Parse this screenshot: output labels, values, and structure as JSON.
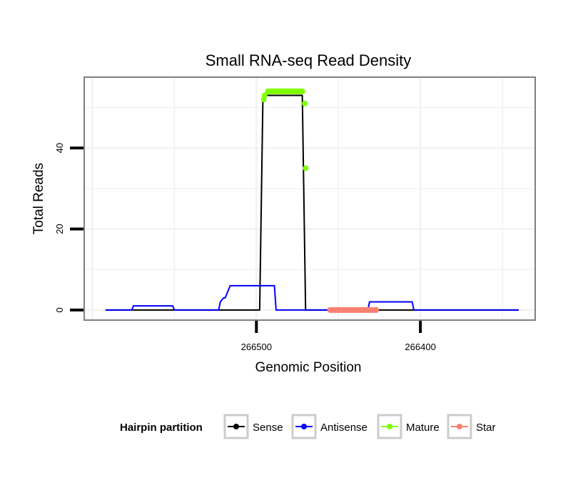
{
  "chart_data": {
    "type": "line",
    "title": "Small RNA-seq Read Density",
    "xlabel": "Genomic Position",
    "ylabel": "Total Reads",
    "x_reversed": true,
    "xlim": [
      266605,
      266330
    ],
    "ylim": [
      -2.5,
      57.5
    ],
    "x_ticks": [
      {
        "value": 266500,
        "label": "266500"
      },
      {
        "value": 266400,
        "label": "266400"
      }
    ],
    "y_ticks": [
      {
        "value": 0,
        "label": "0"
      },
      {
        "value": 20,
        "label": "20"
      },
      {
        "value": 40,
        "label": "40"
      }
    ],
    "grid": true,
    "legend": {
      "title": "Hairpin partition",
      "position": "bottom",
      "entries": [
        {
          "label": "Sense",
          "color": "#000000"
        },
        {
          "label": "Antisense",
          "color": "#0000ff"
        },
        {
          "label": "Mature",
          "color": "#7fff00"
        },
        {
          "label": "Star",
          "color": "#fa8072"
        }
      ]
    },
    "series": [
      {
        "name": "Sense",
        "color": "#000000",
        "kind": "line",
        "x": [
          266592,
          266498,
          266496,
          266472,
          266470,
          266340
        ],
        "y": [
          0,
          0,
          53,
          53,
          0,
          0
        ]
      },
      {
        "name": "Antisense",
        "color": "#0000ff",
        "kind": "line",
        "x": [
          266592,
          266576,
          266575,
          266551,
          266550,
          266523,
          266522,
          266520,
          266519,
          266516,
          266514,
          266489,
          266488,
          266432,
          266431,
          266405,
          266404,
          266340
        ],
        "y": [
          0,
          0,
          1,
          1,
          0,
          0,
          2,
          3,
          3,
          6,
          6,
          6,
          0,
          0,
          2,
          2,
          0,
          0
        ]
      },
      {
        "name": "Mature",
        "color": "#7fff00",
        "kind": "points",
        "x": [
          266495.5,
          266495,
          266493,
          266490,
          266485,
          266480,
          266475,
          266472,
          266470.5,
          266470
        ],
        "y": [
          52,
          53,
          54,
          54,
          54,
          54,
          54,
          54,
          51,
          35
        ]
      },
      {
        "name": "Star",
        "color": "#fa8072",
        "kind": "points",
        "x": [
          266455,
          266451,
          266447,
          266443,
          266439,
          266435,
          266431,
          266427
        ],
        "y": [
          0,
          0,
          0,
          0,
          0,
          0,
          0,
          0
        ]
      }
    ]
  }
}
